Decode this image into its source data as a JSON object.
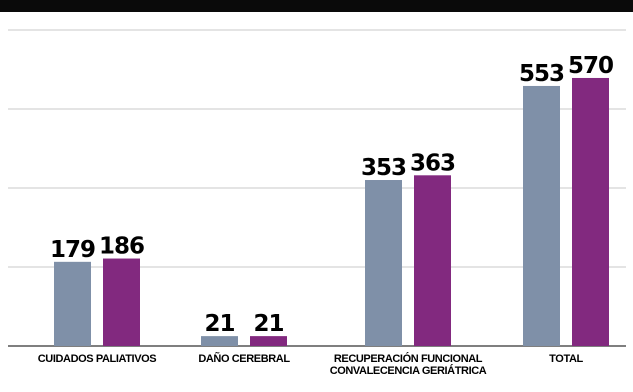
{
  "chart_data": {
    "type": "bar",
    "title": "",
    "xlabel": "",
    "ylabel": "",
    "ylim": [
      0,
      672
    ],
    "grid": true,
    "categories": [
      [
        "CUIDADOS PALIATIVOS"
      ],
      [
        "DAÑO CEREBRAL"
      ],
      [
        "RECUPERACIÓN FUNCIONAL",
        "CONVALECENCIA GERIÁTRICA"
      ],
      [
        "TOTAL"
      ]
    ],
    "series": [
      {
        "values": [
          179,
          21,
          353,
          553
        ],
        "color": "#7f90a8"
      },
      {
        "values": [
          186,
          21,
          363,
          570
        ],
        "color": "#82297f"
      }
    ]
  }
}
